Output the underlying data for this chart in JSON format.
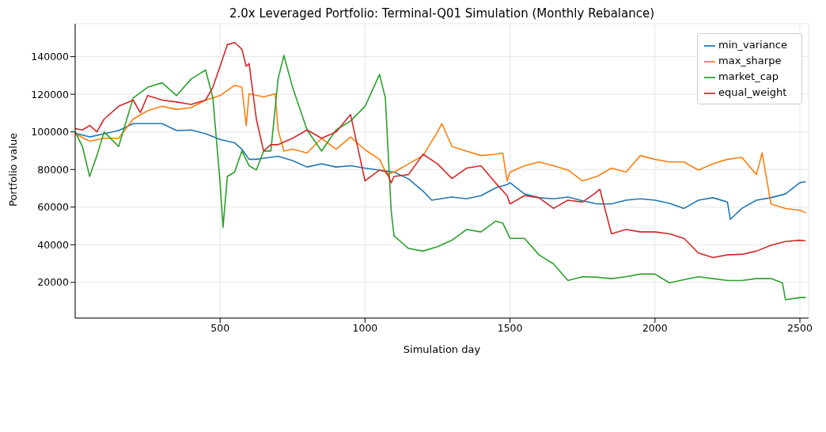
{
  "chart_data": {
    "type": "line",
    "title": "2.0x Leveraged Portfolio: Terminal-Q01 Simulation (Monthly Rebalance)",
    "xlabel": "Simulation day",
    "ylabel": "Portfolio value",
    "xlim": [
      0,
      2530
    ],
    "xticks": [
      500,
      1000,
      1500,
      2000,
      2500
    ],
    "ylim": [
      1000,
      157500
    ],
    "yticks": [
      20000,
      40000,
      60000,
      80000,
      100000,
      120000,
      140000
    ],
    "grid": true,
    "legend": "top right",
    "line_style": "solid",
    "marker": "none",
    "series": [
      {
        "name": "min_variance",
        "color": "#1f77b4",
        "x": [
          0,
          50,
          100,
          150,
          200,
          250,
          300,
          350,
          400,
          450,
          500,
          550,
          575,
          600,
          625,
          650,
          700,
          750,
          800,
          850,
          900,
          950,
          1000,
          1050,
          1100,
          1150,
          1200,
          1230,
          1300,
          1350,
          1400,
          1450,
          1490,
          1500,
          1550,
          1600,
          1650,
          1700,
          1750,
          1800,
          1850,
          1900,
          1950,
          2000,
          2050,
          2100,
          2150,
          2200,
          2250,
          2260,
          2300,
          2350,
          2400,
          2450,
          2500,
          2520
        ],
        "values": [
          99300,
          97300,
          99000,
          100700,
          104400,
          104400,
          104400,
          100700,
          101000,
          99000,
          96000,
          94200,
          90800,
          85400,
          85400,
          86000,
          87000,
          84700,
          81300,
          83000,
          81300,
          82000,
          80700,
          79700,
          78600,
          75000,
          68500,
          63700,
          65400,
          64400,
          66100,
          70200,
          72000,
          73000,
          67000,
          65000,
          64400,
          65400,
          63400,
          61700,
          61700,
          63700,
          64400,
          63700,
          62000,
          59300,
          63700,
          65000,
          62700,
          53500,
          59300,
          63700,
          65000,
          67000,
          73000,
          73500
        ]
      },
      {
        "name": "max_sharpe",
        "color": "#ff7f0e",
        "x": [
          0,
          50,
          100,
          150,
          200,
          250,
          300,
          350,
          400,
          450,
          500,
          550,
          575,
          590,
          600,
          650,
          690,
          700,
          720,
          750,
          800,
          850,
          900,
          950,
          1000,
          1050,
          1075,
          1100,
          1150,
          1200,
          1250,
          1265,
          1300,
          1350,
          1400,
          1450,
          1475,
          1490,
          1500,
          1550,
          1600,
          1650,
          1700,
          1750,
          1800,
          1850,
          1900,
          1950,
          2000,
          2050,
          2100,
          2150,
          2200,
          2250,
          2300,
          2350,
          2370,
          2400,
          2450,
          2500,
          2520
        ],
        "values": [
          99000,
          95000,
          96600,
          96600,
          106800,
          111200,
          113600,
          111900,
          112900,
          116900,
          119300,
          124700,
          123700,
          103400,
          120300,
          118600,
          120300,
          101000,
          89800,
          90800,
          88800,
          96600,
          90800,
          97300,
          90500,
          85400,
          77300,
          78600,
          83000,
          87400,
          100000,
          104400,
          92200,
          89800,
          87400,
          88100,
          88800,
          73900,
          78600,
          82000,
          84000,
          82000,
          79700,
          73900,
          76300,
          80700,
          78600,
          87400,
          85400,
          84000,
          84000,
          79700,
          83000,
          85400,
          86400,
          77300,
          88800,
          61700,
          59300,
          58300,
          57000
        ]
      },
      {
        "name": "market_cap",
        "color": "#2ca02c",
        "x": [
          0,
          25,
          50,
          75,
          100,
          150,
          200,
          250,
          300,
          350,
          400,
          450,
          475,
          500,
          510,
          525,
          550,
          575,
          600,
          625,
          650,
          675,
          700,
          720,
          750,
          800,
          850,
          900,
          950,
          1000,
          1050,
          1070,
          1090,
          1100,
          1150,
          1200,
          1250,
          1300,
          1350,
          1400,
          1450,
          1475,
          1500,
          1550,
          1600,
          1650,
          1700,
          1750,
          1800,
          1850,
          1900,
          1950,
          2000,
          2050,
          2100,
          2150,
          2200,
          2250,
          2300,
          2350,
          2400,
          2440,
          2450,
          2500,
          2520
        ],
        "values": [
          100000,
          92200,
          76300,
          87400,
          100000,
          92200,
          118000,
          123700,
          126100,
          119300,
          128100,
          132900,
          118000,
          72900,
          49200,
          76300,
          78600,
          89800,
          82000,
          79700,
          89800,
          89800,
          128100,
          140700,
          123700,
          101000,
          89800,
          101000,
          105800,
          113600,
          130500,
          118000,
          58300,
          44700,
          38000,
          36600,
          39000,
          42400,
          48100,
          46800,
          52500,
          51500,
          43400,
          43400,
          34600,
          29800,
          21000,
          23000,
          22700,
          22000,
          23000,
          24400,
          24400,
          19700,
          21400,
          23000,
          22000,
          21000,
          21000,
          22000,
          22000,
          19700,
          10800,
          11900,
          12000
        ]
      },
      {
        "name": "equal_weight",
        "color": "#d62728",
        "x": [
          0,
          25,
          50,
          75,
          100,
          150,
          200,
          225,
          250,
          300,
          350,
          400,
          450,
          475,
          500,
          525,
          550,
          575,
          590,
          600,
          625,
          650,
          675,
          700,
          750,
          800,
          850,
          900,
          950,
          1000,
          1050,
          1075,
          1090,
          1100,
          1150,
          1200,
          1250,
          1300,
          1350,
          1400,
          1450,
          1490,
          1500,
          1550,
          1600,
          1650,
          1700,
          1750,
          1790,
          1810,
          1850,
          1900,
          1950,
          2000,
          2050,
          2100,
          2150,
          2200,
          2250,
          2300,
          2350,
          2400,
          2450,
          2500,
          2520
        ],
        "values": [
          101700,
          101000,
          103400,
          100000,
          106800,
          113600,
          116900,
          110200,
          119300,
          116900,
          115900,
          114600,
          116900,
          123700,
          134900,
          146400,
          147500,
          144000,
          134900,
          136300,
          106800,
          89800,
          93200,
          93200,
          96600,
          101000,
          96600,
          100000,
          109200,
          73900,
          79700,
          78600,
          72900,
          76300,
          77300,
          88100,
          83000,
          75200,
          80700,
          82000,
          72900,
          66100,
          61700,
          66100,
          65000,
          59300,
          63700,
          62700,
          67000,
          69500,
          45800,
          48100,
          46800,
          46800,
          45800,
          43400,
          35600,
          33200,
          34600,
          34900,
          36600,
          39700,
          41700,
          42400,
          42000
        ]
      }
    ]
  }
}
